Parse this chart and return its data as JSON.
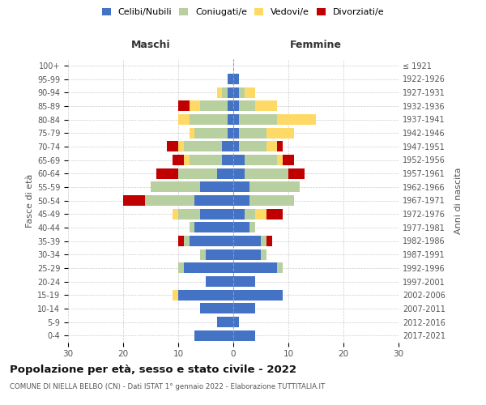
{
  "age_groups": [
    "0-4",
    "5-9",
    "10-14",
    "15-19",
    "20-24",
    "25-29",
    "30-34",
    "35-39",
    "40-44",
    "45-49",
    "50-54",
    "55-59",
    "60-64",
    "65-69",
    "70-74",
    "75-79",
    "80-84",
    "85-89",
    "90-94",
    "95-99",
    "100+"
  ],
  "birth_years": [
    "2017-2021",
    "2012-2016",
    "2007-2011",
    "2002-2006",
    "1997-2001",
    "1992-1996",
    "1987-1991",
    "1982-1986",
    "1977-1981",
    "1972-1976",
    "1967-1971",
    "1962-1966",
    "1957-1961",
    "1952-1956",
    "1947-1951",
    "1942-1946",
    "1937-1941",
    "1932-1936",
    "1927-1931",
    "1922-1926",
    "≤ 1921"
  ],
  "maschi": {
    "celibi": [
      7,
      3,
      6,
      10,
      5,
      9,
      5,
      8,
      7,
      6,
      7,
      6,
      3,
      2,
      2,
      1,
      1,
      1,
      1,
      1,
      0
    ],
    "coniugati": [
      0,
      0,
      0,
      0,
      0,
      1,
      1,
      1,
      1,
      4,
      9,
      9,
      7,
      6,
      7,
      6,
      7,
      5,
      1,
      0,
      0
    ],
    "vedovi": [
      0,
      0,
      0,
      1,
      0,
      0,
      0,
      0,
      0,
      1,
      0,
      0,
      0,
      1,
      1,
      1,
      2,
      2,
      1,
      0,
      0
    ],
    "divorziati": [
      0,
      0,
      0,
      0,
      0,
      0,
      0,
      1,
      0,
      0,
      4,
      0,
      4,
      2,
      2,
      0,
      0,
      2,
      0,
      0,
      0
    ]
  },
  "femmine": {
    "nubili": [
      4,
      1,
      4,
      9,
      4,
      8,
      5,
      5,
      3,
      2,
      3,
      3,
      2,
      2,
      1,
      1,
      1,
      1,
      1,
      1,
      0
    ],
    "coniugate": [
      0,
      0,
      0,
      0,
      0,
      1,
      1,
      1,
      1,
      2,
      8,
      9,
      8,
      6,
      5,
      5,
      7,
      3,
      1,
      0,
      0
    ],
    "vedove": [
      0,
      0,
      0,
      0,
      0,
      0,
      0,
      0,
      0,
      2,
      0,
      0,
      0,
      1,
      2,
      5,
      7,
      4,
      2,
      0,
      0
    ],
    "divorziate": [
      0,
      0,
      0,
      0,
      0,
      0,
      0,
      1,
      0,
      3,
      0,
      0,
      3,
      2,
      1,
      0,
      0,
      0,
      0,
      0,
      0
    ]
  },
  "colors": {
    "celibi": "#4472c4",
    "coniugati": "#b8cfa0",
    "vedovi": "#ffd966",
    "divorziati": "#c00000"
  },
  "xlim": 30,
  "title": "Popolazione per età, sesso e stato civile - 2022",
  "subtitle": "COMUNE DI NIELLA BELBO (CN) - Dati ISTAT 1° gennaio 2022 - Elaborazione TUTTITALIA.IT",
  "ylabel_left": "Fasce di età",
  "ylabel_right": "Anni di nascita",
  "label_maschi": "Maschi",
  "label_femmine": "Femmine",
  "background_color": "#ffffff",
  "grid_color": "#cccccc"
}
